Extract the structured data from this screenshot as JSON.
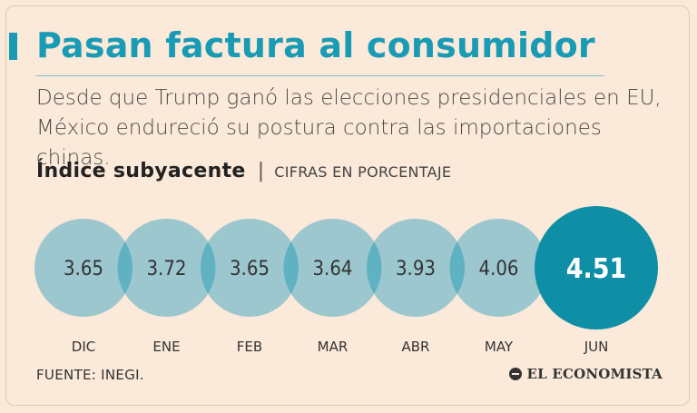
{
  "header": {
    "title": "Pasan factura al consumidor",
    "subtitle": "Desde que Trump ganó las elecciones presidenciales en EU, México endureció su postura contra las importaciones chinas."
  },
  "chart_heading": {
    "title": "Índice subyacente",
    "separator": "|",
    "unit": "CIFRAS EN PORCENTAJE"
  },
  "chart_data": {
    "type": "bubble",
    "title": "Índice subyacente",
    "subtitle": "CIFRAS EN PORCENTAJE",
    "categories": [
      "DIC",
      "ENE",
      "FEB",
      "MAR",
      "ABR",
      "MAY",
      "JUN"
    ],
    "values": [
      3.65,
      3.72,
      3.65,
      3.64,
      3.93,
      4.06,
      4.51
    ],
    "value_labels": [
      "3.65",
      "3.72",
      "3.65",
      "3.64",
      "3.93",
      "4.06",
      "4.51"
    ],
    "highlight_index": 6,
    "colors": {
      "circle": "#9dc7cf",
      "overlap": "#5fb2c2",
      "highlight": "#0f8fa6",
      "label": "#333333",
      "highlight_label": "#ffffff"
    }
  },
  "footer": {
    "source": "FUENTE: INEGI.",
    "brand": "EL ECONOMISTA"
  },
  "colors": {
    "background": "#fbe9d9",
    "accent": "#1a9bb5",
    "text": "#4a4a4a"
  }
}
